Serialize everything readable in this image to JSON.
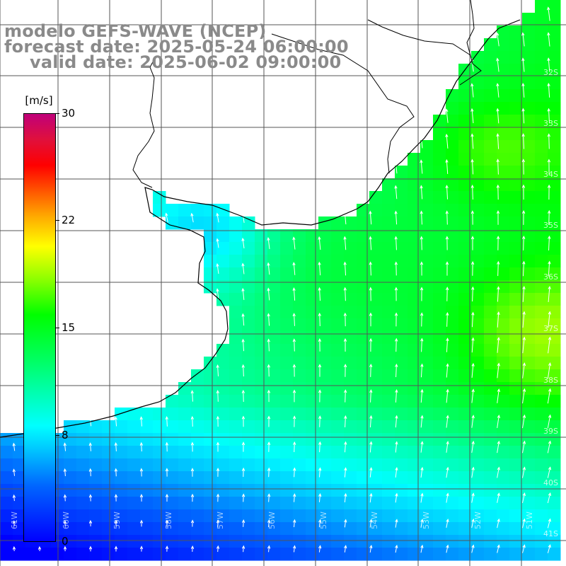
{
  "header": {
    "line1": "modelo GEFS-WAVE (NCEP)",
    "line2": "forecast date: 2025-05-24 06:00:00",
    "line3": "valid date: 2025-06-02 09:00:00"
  },
  "colorbar": {
    "unit": "[m/s]",
    "min": 0,
    "max": 30,
    "ticks": [
      "30",
      "22",
      "15",
      "8",
      "0"
    ],
    "colors": [
      "#0000ff",
      "#0066ff",
      "#00ccff",
      "#00ffff",
      "#00ff66",
      "#00ff00",
      "#88ff00",
      "#ffff00",
      "#ffaa00",
      "#ff5500",
      "#ff0000",
      "#c0007a"
    ]
  },
  "lat_labels": [
    "32S",
    "33S",
    "34S",
    "35S",
    "36S",
    "37S",
    "38S",
    "39S",
    "40S",
    "41S"
  ],
  "lon_labels": [
    "61W",
    "60W",
    "59W",
    "58W",
    "57W",
    "56W",
    "55W",
    "54W",
    "53W",
    "52W",
    "51W"
  ],
  "colors": {
    "land": "#ffffff",
    "coast": "#000000",
    "grid": "#555555",
    "arrows": "#ffffff",
    "title": "#8a8a8a"
  }
}
